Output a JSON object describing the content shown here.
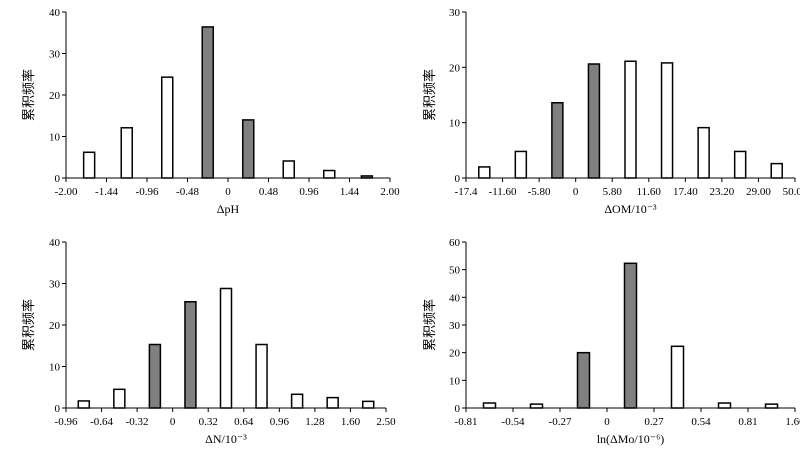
{
  "chart_data": [
    {
      "type": "bar",
      "xlabel": "ΔpH",
      "ylabel": "累积频率",
      "ylim": [
        0,
        40
      ],
      "yticks": [
        "0",
        "10",
        "20",
        "30",
        "40"
      ],
      "xticks": [
        "-2.00",
        "-1.44",
        "-0.96",
        "-0.48",
        "0",
        "0.48",
        "0.96",
        "1.44",
        "2.00"
      ],
      "bars": [
        {
          "x": -1.68,
          "value": 6.2,
          "filled": false
        },
        {
          "x": -1.2,
          "value": 12.1,
          "filled": false
        },
        {
          "x": -0.72,
          "value": 24.3,
          "filled": false
        },
        {
          "x": -0.24,
          "value": 36.4,
          "filled": true
        },
        {
          "x": 0.24,
          "value": 14.0,
          "filled": true
        },
        {
          "x": 0.72,
          "value": 4.1,
          "filled": false
        },
        {
          "x": 1.2,
          "value": 1.8,
          "filled": false
        },
        {
          "x": 1.68,
          "value": 0.5,
          "filled": true
        }
      ],
      "grid": false
    },
    {
      "type": "bar",
      "xlabel": "ΔOM/10⁻³",
      "ylabel": "累积频率",
      "ylim": [
        0,
        30
      ],
      "yticks": [
        "0",
        "10",
        "20",
        "30"
      ],
      "xticks": [
        "-17.4",
        "-11.60",
        "-5.80",
        "0",
        "5.80",
        "11.60",
        "17.40",
        "23.20",
        "29.00",
        "50.00"
      ],
      "bars": [
        {
          "x": -14.5,
          "value": 2.0,
          "filled": false
        },
        {
          "x": -8.7,
          "value": 4.8,
          "filled": false
        },
        {
          "x": -2.9,
          "value": 13.6,
          "filled": true
        },
        {
          "x": 2.9,
          "value": 20.6,
          "filled": true
        },
        {
          "x": 8.7,
          "value": 21.1,
          "filled": false
        },
        {
          "x": 14.5,
          "value": 20.8,
          "filled": false
        },
        {
          "x": 20.3,
          "value": 9.1,
          "filled": false
        },
        {
          "x": 26.1,
          "value": 4.8,
          "filled": false
        },
        {
          "x": 39.5,
          "value": 2.6,
          "filled": false
        }
      ],
      "grid": false
    },
    {
      "type": "bar",
      "xlabel": "ΔN/10⁻³",
      "ylabel": "累积频率",
      "ylim": [
        0,
        40
      ],
      "yticks": [
        "0",
        "10",
        "20",
        "30",
        "40"
      ],
      "xticks": [
        "-0.96",
        "-0.64",
        "-0.32",
        "0",
        "0.32",
        "0.64",
        "0.96",
        "1.28",
        "1.60",
        "2.50"
      ],
      "bars": [
        {
          "x": -0.8,
          "value": 1.7,
          "filled": false
        },
        {
          "x": -0.48,
          "value": 4.5,
          "filled": false
        },
        {
          "x": -0.16,
          "value": 15.3,
          "filled": true
        },
        {
          "x": 0.16,
          "value": 25.6,
          "filled": true
        },
        {
          "x": 0.48,
          "value": 28.8,
          "filled": false
        },
        {
          "x": 0.8,
          "value": 15.3,
          "filled": false
        },
        {
          "x": 1.12,
          "value": 3.3,
          "filled": false
        },
        {
          "x": 1.44,
          "value": 2.5,
          "filled": false
        },
        {
          "x": 2.05,
          "value": 1.6,
          "filled": false
        }
      ],
      "grid": false
    },
    {
      "type": "bar",
      "xlabel": "ln(ΔMo/10⁻⁶)",
      "ylabel": "累积频率",
      "ylim": [
        0,
        60
      ],
      "yticks": [
        "0",
        "10",
        "20",
        "30",
        "40",
        "50",
        "60"
      ],
      "xticks": [
        "-0.81",
        "-0.54",
        "-0.27",
        "0",
        "0.27",
        "0.54",
        "0.81",
        "1.60"
      ],
      "bars": [
        {
          "x": -0.675,
          "value": 1.8,
          "filled": false
        },
        {
          "x": -0.405,
          "value": 1.4,
          "filled": false
        },
        {
          "x": -0.135,
          "value": 20.0,
          "filled": true
        },
        {
          "x": 0.135,
          "value": 52.3,
          "filled": true
        },
        {
          "x": 0.405,
          "value": 22.3,
          "filled": false
        },
        {
          "x": 0.675,
          "value": 1.8,
          "filled": false
        },
        {
          "x": 1.205,
          "value": 1.4,
          "filled": false
        }
      ],
      "grid": false
    }
  ]
}
